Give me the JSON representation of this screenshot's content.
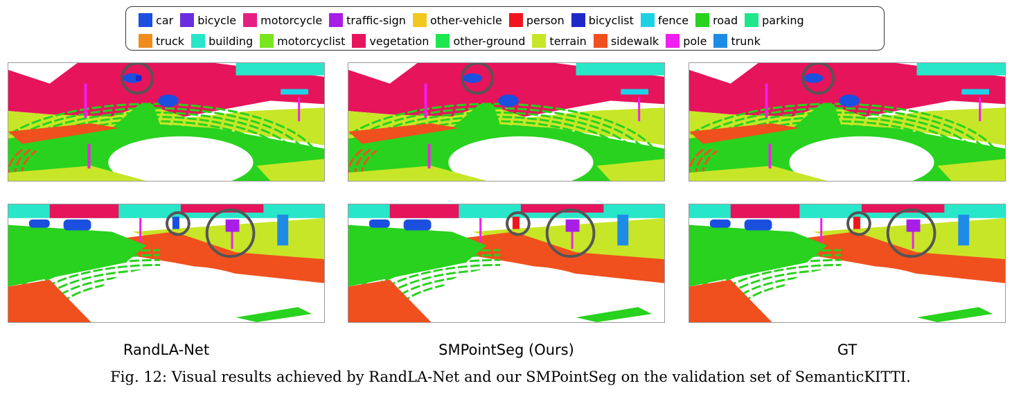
{
  "legend": {
    "row1": [
      {
        "label": "car",
        "color": "#1a4fe0"
      },
      {
        "label": "bicycle",
        "color": "#6a2de0"
      },
      {
        "label": "motorcycle",
        "color": "#e61e82"
      },
      {
        "label": "traffic-sign",
        "color": "#a81ee6"
      },
      {
        "label": "other-vehicle",
        "color": "#f2c81e"
      },
      {
        "label": "person",
        "color": "#f0141e"
      },
      {
        "label": "bicyclist",
        "color": "#1e28c8"
      },
      {
        "label": "fence",
        "color": "#1ed2e6"
      },
      {
        "label": "road",
        "color": "#28d21e"
      },
      {
        "label": "parking",
        "color": "#1ee68c"
      }
    ],
    "row2": [
      {
        "label": "truck",
        "color": "#f08c1e"
      },
      {
        "label": "building",
        "color": "#28e6c8"
      },
      {
        "label": "motorcyclist",
        "color": "#78e61e"
      },
      {
        "label": "vegetation",
        "color": "#e6145a"
      },
      {
        "label": "other-ground",
        "color": "#1ee650"
      },
      {
        "label": "terrain",
        "color": "#c8e628"
      },
      {
        "label": "sidewalk",
        "color": "#f0501e"
      },
      {
        "label": "pole",
        "color": "#f01ef0"
      },
      {
        "label": "trunk",
        "color": "#1e8ce6"
      }
    ]
  },
  "methods": [
    "RandLA-Net",
    "SMPointSeg (Ours)",
    "GT"
  ],
  "caption": "Fig. 12: Visual results achieved by RandLA-Net and our SMPointSeg on the validation set of SemanticKITTI."
}
